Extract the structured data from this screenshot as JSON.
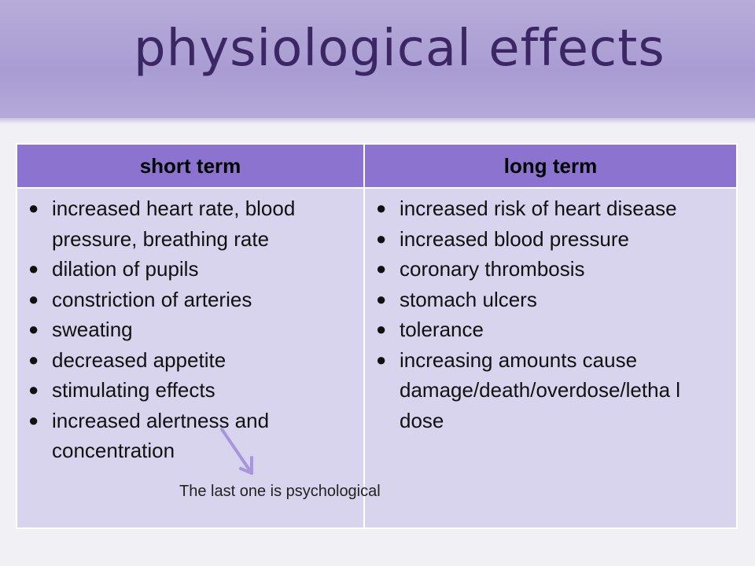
{
  "slide": {
    "title": "physiological effects"
  },
  "table": {
    "headers": {
      "short_term": "short term",
      "long_term": "long term"
    },
    "short_term_items": [
      "increased heart rate, blood pressure, breathing rate",
      "dilation of pupils",
      "constriction of arteries",
      "sweating",
      "decreased appetite",
      "stimulating effects",
      "increased alertness and concentration"
    ],
    "long_term_items": [
      "increased risk of heart disease",
      "increased blood pressure",
      "coronary thrombosis",
      "stomach ulcers",
      "tolerance",
      "increasing amounts cause damage/death/overdose/letha l dose"
    ]
  },
  "annotation": {
    "text": "The last one is psychological"
  },
  "colors": {
    "header_band": "#a99cd3",
    "title_text": "#3a2764",
    "table_header": "#8b73cf",
    "table_body": "#d9d4ee",
    "arrow": "#a896db"
  },
  "icons": {
    "bullet": "black-circle-bullet-icon",
    "arrow": "arrow-down-right-icon"
  }
}
